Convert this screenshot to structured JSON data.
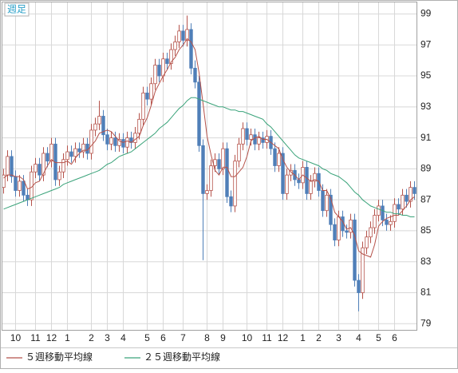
{
  "chart_data": {
    "type": "candlestick",
    "label": "週足",
    "categories": [
      null,
      null,
      null,
      "10",
      null,
      null,
      null,
      null,
      "11",
      null,
      null,
      null,
      "12",
      null,
      null,
      null,
      "1",
      null,
      null,
      null,
      null,
      null,
      "2",
      null,
      null,
      null,
      "3",
      null,
      null,
      null,
      "4",
      null,
      null,
      null,
      null,
      null,
      "5",
      null,
      null,
      null,
      "6",
      null,
      null,
      null,
      null,
      "7",
      null,
      null,
      null,
      null,
      null,
      "8",
      null,
      null,
      null,
      "9",
      null,
      null,
      null,
      null,
      null,
      "10",
      null,
      null,
      null,
      null,
      "11",
      null,
      null,
      null,
      "12",
      null,
      null,
      null,
      null,
      "1",
      null,
      null,
      null,
      "2",
      null,
      null,
      null,
      null,
      "3",
      null,
      null,
      null,
      null,
      "4",
      null,
      null,
      null,
      null,
      "5",
      null,
      null,
      null,
      "6",
      null,
      null,
      null,
      null,
      null
    ],
    "open": [
      87.8,
      88.6,
      89.8,
      88.5,
      87.6,
      88.2,
      87.3,
      87.0,
      88.8,
      89.3,
      88.6,
      90.0,
      89.5,
      90.6,
      88.3,
      88.8,
      89.6,
      90.1,
      89.8,
      90.3,
      90.1,
      90.6,
      90.0,
      91.5,
      91.9,
      92.4,
      91.2,
      90.6,
      91.0,
      90.5,
      90.9,
      90.4,
      91.0,
      90.7,
      91.3,
      92.2,
      93.9,
      93.5,
      94.5,
      95.7,
      95.0,
      96.1,
      95.8,
      96.7,
      97.2,
      97.9,
      97.3,
      98.0,
      95.5,
      94.6,
      90.5,
      87.4,
      87.6,
      89.2,
      89.6,
      89.0,
      90.3,
      87.2,
      86.6,
      89.5,
      90.6,
      91.6,
      90.9,
      91.2,
      90.6,
      91.0,
      90.7,
      91.1,
      90.3,
      89.2,
      90.0,
      87.4,
      88.6,
      88.9,
      88.3,
      88.1,
      89.1,
      87.4,
      88.2,
      88.7,
      87.6,
      86.3,
      87.3,
      85.4,
      84.4,
      85.9,
      85.0,
      84.9,
      85.7,
      81.8,
      81.0,
      83.9,
      84.6,
      85.2,
      86.0,
      86.6,
      85.7,
      85.4,
      85.6,
      86.7,
      86.4,
      87.3,
      86.9,
      87.8
    ],
    "high": [
      89.0,
      90.2,
      90.2,
      88.9,
      88.6,
      88.6,
      87.7,
      89.2,
      89.7,
      89.7,
      90.4,
      90.4,
      91.0,
      91.0,
      89.2,
      90.0,
      90.5,
      90.5,
      90.7,
      90.7,
      91.0,
      91.0,
      91.9,
      92.3,
      93.4,
      92.8,
      91.6,
      91.4,
      91.4,
      91.3,
      91.3,
      91.4,
      91.4,
      91.7,
      92.6,
      94.3,
      94.3,
      94.9,
      96.1,
      96.1,
      96.5,
      96.5,
      97.1,
      97.6,
      98.3,
      98.3,
      98.9,
      98.4,
      96.0,
      95.0,
      90.9,
      88.0,
      89.6,
      90.0,
      90.0,
      90.7,
      90.7,
      87.6,
      89.9,
      91.0,
      92.0,
      92.0,
      91.6,
      91.6,
      91.4,
      91.4,
      91.5,
      91.5,
      90.7,
      90.4,
      90.4,
      89.0,
      89.3,
      89.3,
      88.7,
      89.5,
      89.5,
      88.6,
      89.1,
      89.1,
      88.0,
      87.7,
      87.7,
      85.8,
      86.3,
      86.3,
      85.4,
      86.1,
      86.1,
      82.2,
      84.3,
      85.0,
      85.6,
      86.4,
      87.0,
      87.0,
      86.1,
      86.0,
      87.1,
      87.1,
      87.7,
      87.7,
      88.2,
      88.2
    ],
    "low": [
      87.4,
      88.2,
      88.1,
      87.2,
      87.2,
      86.9,
      86.6,
      86.6,
      88.4,
      88.2,
      88.2,
      89.1,
      89.1,
      87.9,
      87.9,
      88.4,
      89.2,
      89.4,
      89.4,
      89.7,
      89.7,
      89.6,
      89.6,
      91.1,
      91.5,
      90.8,
      90.2,
      90.2,
      90.1,
      90.1,
      90.0,
      90.0,
      90.3,
      90.3,
      90.9,
      91.8,
      93.1,
      93.1,
      94.1,
      94.6,
      94.6,
      95.4,
      95.4,
      96.3,
      96.8,
      96.9,
      96.9,
      95.1,
      94.2,
      90.1,
      83.1,
      87.0,
      87.2,
      88.8,
      88.6,
      88.6,
      86.8,
      86.2,
      86.2,
      89.1,
      90.2,
      90.5,
      90.5,
      90.2,
      90.2,
      90.3,
      90.3,
      89.9,
      88.8,
      88.8,
      87.0,
      87.0,
      88.2,
      87.9,
      87.7,
      87.7,
      87.0,
      87.0,
      87.8,
      87.2,
      85.9,
      85.9,
      85.0,
      84.0,
      84.0,
      84.6,
      84.5,
      84.5,
      81.4,
      79.8,
      80.6,
      83.5,
      84.2,
      84.8,
      85.6,
      85.3,
      85.0,
      85.0,
      85.2,
      86.0,
      86.0,
      86.5,
      86.5,
      87.0
    ],
    "close": [
      88.6,
      89.8,
      88.5,
      87.6,
      88.2,
      87.3,
      87.0,
      88.8,
      89.3,
      88.6,
      90.0,
      89.5,
      90.6,
      88.3,
      88.8,
      89.6,
      90.1,
      89.8,
      90.3,
      90.1,
      90.6,
      90.0,
      91.5,
      91.9,
      92.4,
      91.2,
      90.6,
      91.0,
      90.5,
      90.9,
      90.4,
      91.0,
      90.7,
      91.3,
      92.2,
      93.9,
      93.5,
      94.5,
      95.7,
      95.0,
      96.1,
      95.8,
      96.7,
      97.2,
      97.9,
      97.3,
      98.0,
      95.5,
      94.6,
      90.5,
      87.4,
      87.6,
      89.2,
      89.6,
      89.0,
      90.3,
      87.2,
      86.6,
      89.5,
      90.6,
      91.6,
      90.9,
      91.2,
      90.6,
      91.0,
      90.7,
      91.1,
      90.3,
      89.2,
      90.0,
      87.4,
      88.6,
      88.9,
      88.3,
      88.1,
      89.1,
      87.4,
      88.2,
      88.7,
      87.6,
      86.3,
      87.3,
      85.4,
      84.4,
      85.9,
      85.0,
      84.9,
      85.7,
      81.8,
      81.0,
      83.9,
      84.6,
      85.2,
      86.0,
      86.6,
      85.7,
      85.4,
      85.6,
      86.7,
      86.4,
      87.3,
      86.9,
      87.8,
      87.4
    ],
    "up_color": "#b5524a",
    "down_color": "#4f7fb8",
    "series": [
      {
        "name": "５週移動平均線",
        "color": "#b5524a",
        "values": [
          88.4,
          88.6,
          88.6,
          88.5,
          88.5,
          88.3,
          87.7,
          87.8,
          88.1,
          88.2,
          88.7,
          89.2,
          89.6,
          89.4,
          89.4,
          89.4,
          89.5,
          89.3,
          89.7,
          90.0,
          90.2,
          90.2,
          90.5,
          90.8,
          91.3,
          91.4,
          91.5,
          91.4,
          91.1,
          90.8,
          90.7,
          90.8,
          90.7,
          90.9,
          91.1,
          91.8,
          92.3,
          93.1,
          94.0,
          94.5,
          95.0,
          95.4,
          95.9,
          96.2,
          96.7,
          97.0,
          97.4,
          97.2,
          96.7,
          95.2,
          93.2,
          91.1,
          89.9,
          88.9,
          88.6,
          89.1,
          89.1,
          88.5,
          88.5,
          88.8,
          89.1,
          89.8,
          90.8,
          91.0,
          91.1,
          90.9,
          90.9,
          90.7,
          90.5,
          90.3,
          89.6,
          89.1,
          88.8,
          88.6,
          88.3,
          88.6,
          88.4,
          88.2,
          88.3,
          88.2,
          87.6,
          87.6,
          87.1,
          86.2,
          85.9,
          85.6,
          85.1,
          85.2,
          84.7,
          83.7,
          83.5,
          83.4,
          83.3,
          84.1,
          85.3,
          85.6,
          85.8,
          85.9,
          86.0,
          86.0,
          86.3,
          86.6,
          87.0,
          87.2
        ]
      },
      {
        "name": "２５週移動平均線",
        "color": "#3aa37a",
        "values": [
          86.4,
          86.5,
          86.6,
          86.7,
          86.8,
          86.9,
          87.0,
          87.1,
          87.2,
          87.3,
          87.4,
          87.5,
          87.6,
          87.7,
          87.8,
          88.0,
          88.1,
          88.2,
          88.3,
          88.4,
          88.5,
          88.6,
          88.7,
          88.8,
          88.9,
          89.1,
          89.3,
          89.4,
          89.6,
          89.8,
          89.9,
          90.0,
          90.1,
          90.3,
          90.5,
          90.7,
          90.9,
          91.1,
          91.3,
          91.6,
          91.8,
          92.0,
          92.3,
          92.6,
          92.9,
          93.1,
          93.4,
          93.6,
          93.6,
          93.5,
          93.4,
          93.3,
          93.2,
          93.1,
          93.0,
          93.0,
          92.9,
          92.8,
          92.8,
          92.7,
          92.7,
          92.6,
          92.5,
          92.4,
          92.3,
          92.2,
          91.9,
          91.7,
          91.4,
          91.1,
          90.8,
          90.5,
          90.2,
          89.9,
          89.7,
          89.6,
          89.5,
          89.4,
          89.3,
          89.2,
          89.0,
          88.9,
          88.7,
          88.6,
          88.5,
          88.3,
          88.1,
          87.8,
          87.5,
          87.3,
          87.0,
          86.8,
          86.6,
          86.5,
          86.4,
          86.3,
          86.2,
          86.2,
          86.1,
          86.1,
          86.0,
          86.0,
          85.9,
          85.9
        ]
      }
    ],
    "ylim": [
      78.6,
      99.8
    ],
    "yticks": [
      79,
      81,
      83,
      85,
      87,
      89,
      91,
      93,
      95,
      97,
      99
    ],
    "grid": true
  }
}
